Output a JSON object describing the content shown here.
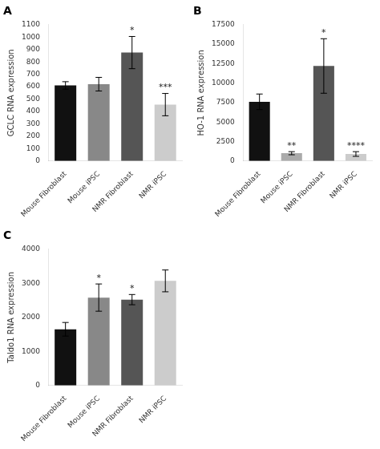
{
  "chart_data": [
    {
      "type": "bar",
      "title": "A",
      "ylabel": "GCLC RNA expression",
      "categories": [
        "Mouse Fibroblast",
        "Mouse iPSC",
        "NMR Fibroblast",
        "NMR iPSC"
      ],
      "values": [
        610,
        620,
        875,
        455
      ],
      "errors": [
        30,
        55,
        130,
        90
      ],
      "colors": [
        "#111111",
        "#888888",
        "#555555",
        "#cccccc"
      ],
      "ylim": [
        0,
        1100
      ],
      "yticks": [
        0,
        100,
        200,
        300,
        400,
        500,
        600,
        700,
        800,
        900,
        1000,
        1100
      ],
      "annotations": [
        {
          "category": "NMR Fibroblast",
          "text": "*"
        },
        {
          "category": "NMR iPSC",
          "text": "***"
        }
      ],
      "grid": false
    },
    {
      "type": "bar",
      "title": "B",
      "ylabel": "HO-1 RNA expression",
      "categories": [
        "Mouse Fibroblast",
        "Mouse iPSC",
        "NMR Fibroblast",
        "NMR iPSC"
      ],
      "values": [
        7600,
        1000,
        12200,
        900
      ],
      "errors": [
        1000,
        200,
        3500,
        300
      ],
      "colors": [
        "#111111",
        "#aaaaaa",
        "#555555",
        "#cccccc"
      ],
      "ylim": [
        0,
        17500
      ],
      "yticks": [
        0,
        2500,
        5000,
        7500,
        10000,
        12500,
        15000,
        17500
      ],
      "annotations": [
        {
          "category": "Mouse iPSC",
          "text": "**"
        },
        {
          "category": "NMR Fibroblast",
          "text": "*"
        },
        {
          "category": "NMR iPSC",
          "text": "****"
        }
      ],
      "grid": false
    },
    {
      "type": "bar",
      "title": "C",
      "ylabel": "Taldo1 RNA expression",
      "categories": [
        "Mouse Fibroblast",
        "Mouse iPSC",
        "NMR Fibroblast",
        "NMR iPSC"
      ],
      "values": [
        1650,
        2580,
        2520,
        3070
      ],
      "errors": [
        200,
        400,
        150,
        320
      ],
      "colors": [
        "#111111",
        "#888888",
        "#555555",
        "#cccccc"
      ],
      "ylim": [
        0,
        4000
      ],
      "yticks": [
        0,
        1000,
        2000,
        3000,
        4000
      ],
      "annotations": [
        {
          "category": "Mouse iPSC",
          "text": "*"
        },
        {
          "category": "NMR Fibroblast",
          "text": "*"
        }
      ],
      "grid": false
    }
  ]
}
